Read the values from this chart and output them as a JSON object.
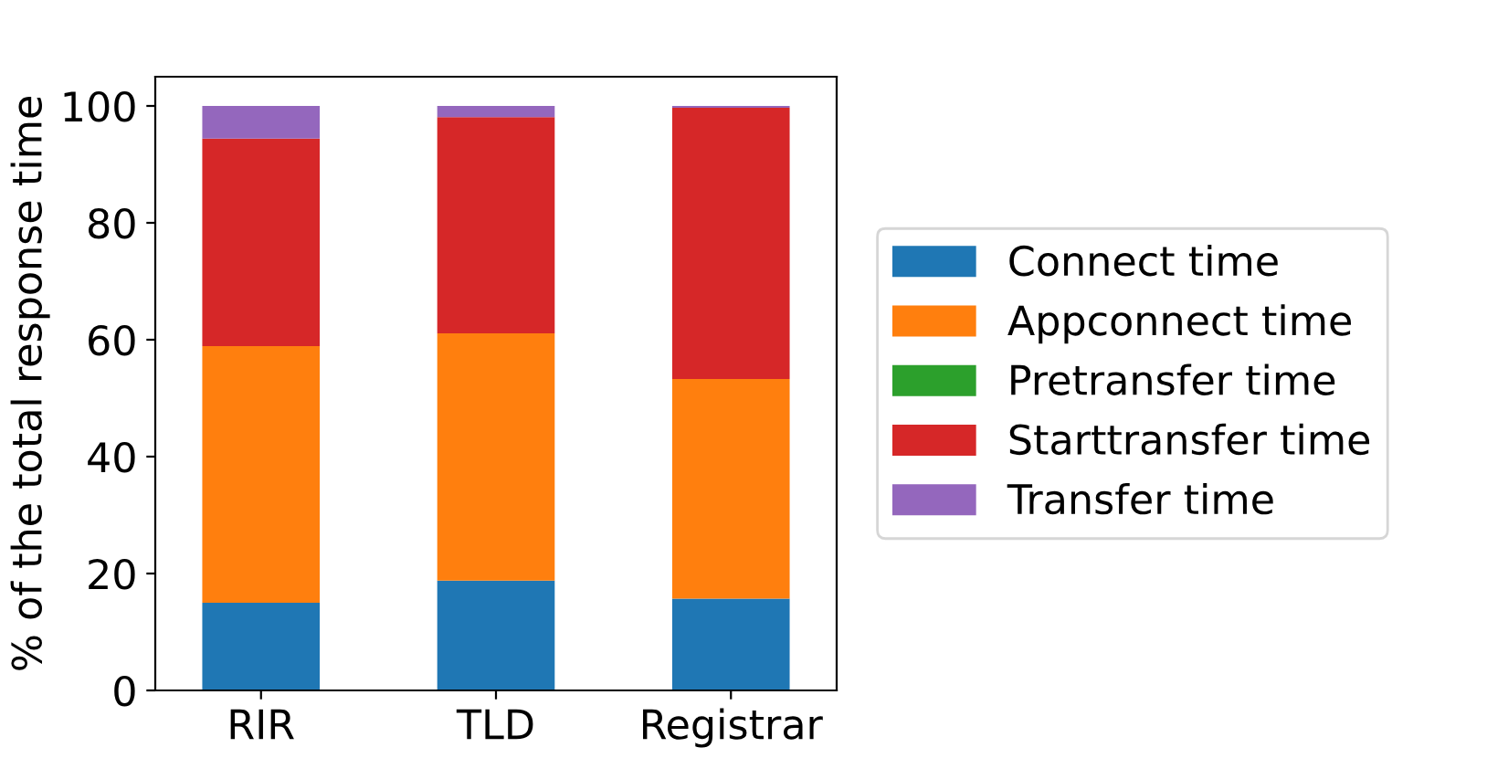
{
  "chart_data": {
    "type": "bar",
    "stacked": true,
    "ylabel": "% of the total response time",
    "categories": [
      "RIR",
      "TLD",
      "Registrar"
    ],
    "series": [
      {
        "name": "Connect time",
        "color": "#1f77b4",
        "values": [
          15.0,
          18.8,
          15.7
        ]
      },
      {
        "name": "Appconnect time",
        "color": "#ff7f0e",
        "values": [
          43.9,
          42.3,
          37.6
        ]
      },
      {
        "name": "Pretransfer time",
        "color": "#2ca02c",
        "values": [
          0,
          0,
          0
        ]
      },
      {
        "name": "Starttransfer time",
        "color": "#d62728",
        "values": [
          35.5,
          37.0,
          46.4
        ]
      },
      {
        "name": "Transfer time",
        "color": "#9467bd",
        "values": [
          5.6,
          1.9,
          0.3
        ]
      }
    ],
    "ylim": [
      0,
      105
    ],
    "yticks": [
      0,
      20,
      40,
      60,
      80,
      100
    ],
    "grid": false,
    "legend": "right"
  }
}
